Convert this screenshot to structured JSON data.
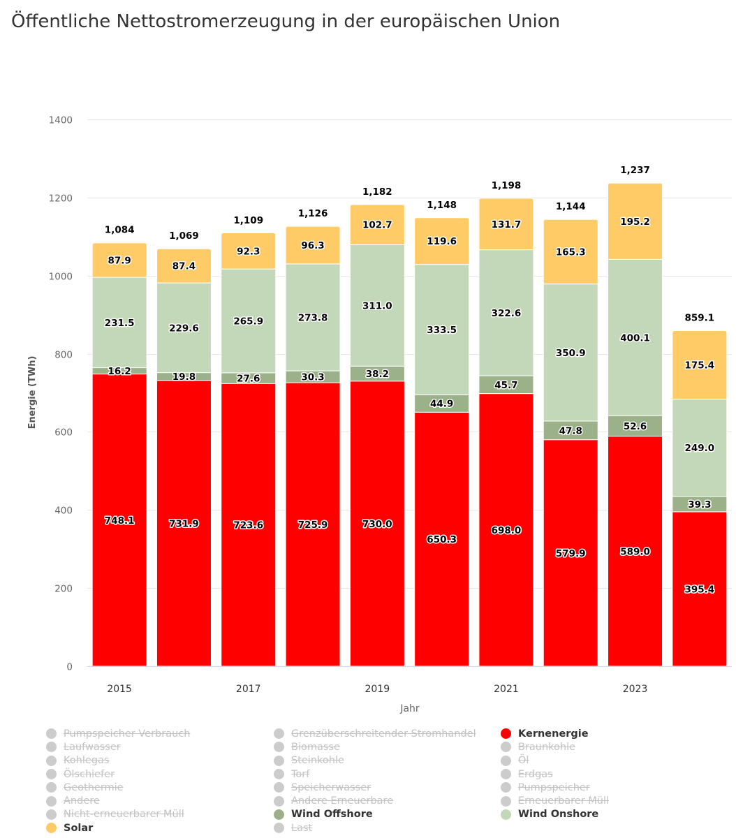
{
  "title": "Öffentliche Nettostromerzeugung in der europäischen Union",
  "chart_data": {
    "type": "bar",
    "stacked": true,
    "title": "Öffentliche Nettostromerzeugung in der europäischen Union",
    "xlabel": "Jahr",
    "ylabel": "Energie (TWh)",
    "ylim": [
      0,
      1400
    ],
    "yticks": [
      "0",
      "200",
      "400",
      "600",
      "800",
      "1000",
      "1200",
      "1400"
    ],
    "categories": [
      "2015",
      "2016",
      "2017",
      "2018",
      "2019",
      "2020",
      "2021",
      "2022",
      "2023",
      "2024"
    ],
    "xtick_labels": [
      "2015",
      "",
      "2017",
      "",
      "2019",
      "",
      "2021",
      "",
      "2023",
      ""
    ],
    "grid": true,
    "series": [
      {
        "name": "Kernenergie",
        "color": "#ff0000",
        "values": [
          748.1,
          731.9,
          723.6,
          725.9,
          730.0,
          650.3,
          698.0,
          579.9,
          589.0,
          395.4
        ],
        "labels": [
          "748.1",
          "731.9",
          "723.6",
          "725.9",
          "730.0",
          "650.3",
          "698.0",
          "579.9",
          "589.0",
          "395.4"
        ]
      },
      {
        "name": "Wind Offshore",
        "color": "#9ab18a",
        "values": [
          16.2,
          19.8,
          27.6,
          30.3,
          38.2,
          44.9,
          45.7,
          47.8,
          52.6,
          39.3
        ],
        "labels": [
          "16.2",
          "19.8",
          "27.6",
          "30.3",
          "38.2",
          "44.9",
          "45.7",
          "47.8",
          "52.6",
          "39.3"
        ]
      },
      {
        "name": "Wind Onshore",
        "color": "#c3d8b9",
        "values": [
          231.5,
          229.6,
          265.9,
          273.8,
          311.0,
          333.5,
          322.6,
          350.9,
          400.1,
          249.0
        ],
        "labels": [
          "231.5",
          "229.6",
          "265.9",
          "273.8",
          "311.0",
          "333.5",
          "322.6",
          "350.9",
          "400.1",
          "249.0"
        ]
      },
      {
        "name": "Solar",
        "color": "#ffcb66",
        "values": [
          87.9,
          87.4,
          92.3,
          96.3,
          102.7,
          119.6,
          131.7,
          165.3,
          195.2,
          175.4
        ],
        "labels": [
          "87.9",
          "87.4",
          "92.3",
          "96.3",
          "102.7",
          "119.6",
          "131.7",
          "165.3",
          "195.2",
          "175.4"
        ]
      }
    ],
    "totals": [
      1084,
      1069,
      1109,
      1126,
      1182,
      1148,
      1198,
      1144,
      1237,
      859.1
    ],
    "total_labels": [
      "1,084",
      "1,069",
      "1,109",
      "1,126",
      "1,182",
      "1,148",
      "1,198",
      "1,144",
      "1,237",
      "859.1"
    ],
    "legend": {
      "placement": "bottom",
      "columns": [
        [
          {
            "label": "Pumpspeicher Verbrauch",
            "active": false
          },
          {
            "label": "Laufwasser",
            "active": false
          },
          {
            "label": "Kohlegas",
            "active": false
          },
          {
            "label": "Ölschiefer",
            "active": false
          },
          {
            "label": "Geothermie",
            "active": false
          },
          {
            "label": "Andere",
            "active": false
          },
          {
            "label": "Nicht-erneuerbarer Müll",
            "active": false
          },
          {
            "label": "Solar",
            "active": true,
            "color": "#ffcb66"
          }
        ],
        [
          {
            "label": "Grenzüberschreitender Stromhandel",
            "active": false
          },
          {
            "label": "Biomasse",
            "active": false
          },
          {
            "label": "Steinkohle",
            "active": false
          },
          {
            "label": "Torf",
            "active": false
          },
          {
            "label": "Speicherwasser",
            "active": false
          },
          {
            "label": "Andere Erneuerbare",
            "active": false
          },
          {
            "label": "Wind Offshore",
            "active": true,
            "color": "#9ab18a"
          },
          {
            "label": "Last",
            "active": false
          }
        ],
        [
          {
            "label": "Kernenergie",
            "active": true,
            "color": "#ff0000"
          },
          {
            "label": "Braunkohle",
            "active": false
          },
          {
            "label": "Öl",
            "active": false
          },
          {
            "label": "Erdgas",
            "active": false
          },
          {
            "label": "Pumpspeicher",
            "active": false
          },
          {
            "label": "Erneuerbarer Müll",
            "active": false
          },
          {
            "label": "Wind Onshore",
            "active": true,
            "color": "#c3d8b9"
          }
        ]
      ],
      "inactive_color": "#cccccc"
    }
  }
}
